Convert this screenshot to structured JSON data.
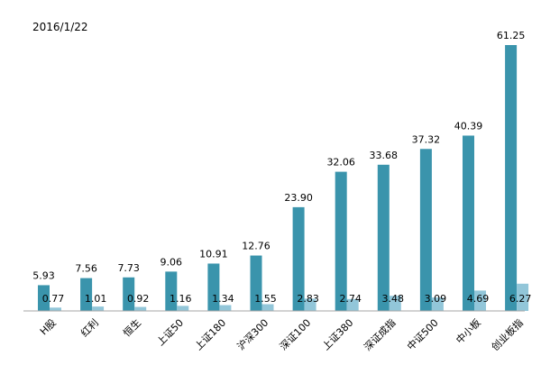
{
  "chart_data": {
    "type": "bar",
    "date": "2016/1/22",
    "categories": [
      "H股",
      "红利",
      "恒生",
      "上证50",
      "上证180",
      "沪深300",
      "深证100",
      "上证380",
      "深证成指",
      "中证500",
      "中小板",
      "创业板指"
    ],
    "series": [
      {
        "values": [
          5.93,
          7.56,
          7.73,
          9.06,
          10.91,
          12.76,
          23.9,
          32.06,
          33.68,
          37.32,
          40.39,
          61.25
        ],
        "color": "#3a94ac"
      },
      {
        "values": [
          0.77,
          1.01,
          0.92,
          1.16,
          1.34,
          1.55,
          2.83,
          2.74,
          3.48,
          3.09,
          4.69,
          6.27
        ],
        "color": "#92c6d9"
      }
    ],
    "ylim": [
      0,
      66
    ],
    "grid": false,
    "legend": "none"
  }
}
